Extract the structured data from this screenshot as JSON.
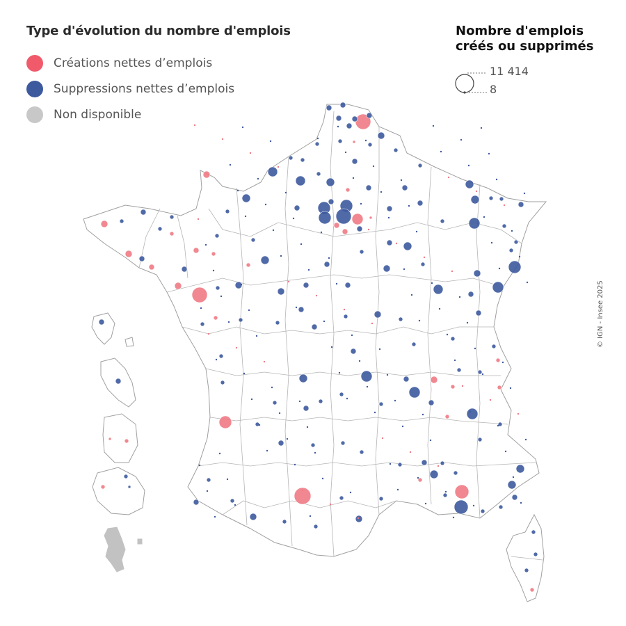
{
  "legend": {
    "title": "Type d'évolution du nombre d'emplois",
    "items": [
      {
        "label": "Créations nettes d’emplois",
        "color": "#f05a6b"
      },
      {
        "label": "Suppressions nettes d’emplois",
        "color": "#3d5a9e"
      },
      {
        "label": "Non disponible",
        "color": "#c8c8c8"
      }
    ]
  },
  "size_legend": {
    "title_line1": "Nombre d'emplois",
    "title_line2": "créés ou supprimés",
    "max_label": "11 414",
    "min_label": "8"
  },
  "credit": "© IGN - Insee 2025",
  "colors": {
    "creation": "#f07a84",
    "suppression": "#3d5a9e",
    "unavailable": "#c2c2c2",
    "border": "#a0a0a0"
  },
  "chart_data": {
    "type": "proportional-symbol-map",
    "size_min": 8,
    "size_max": 11414
  }
}
